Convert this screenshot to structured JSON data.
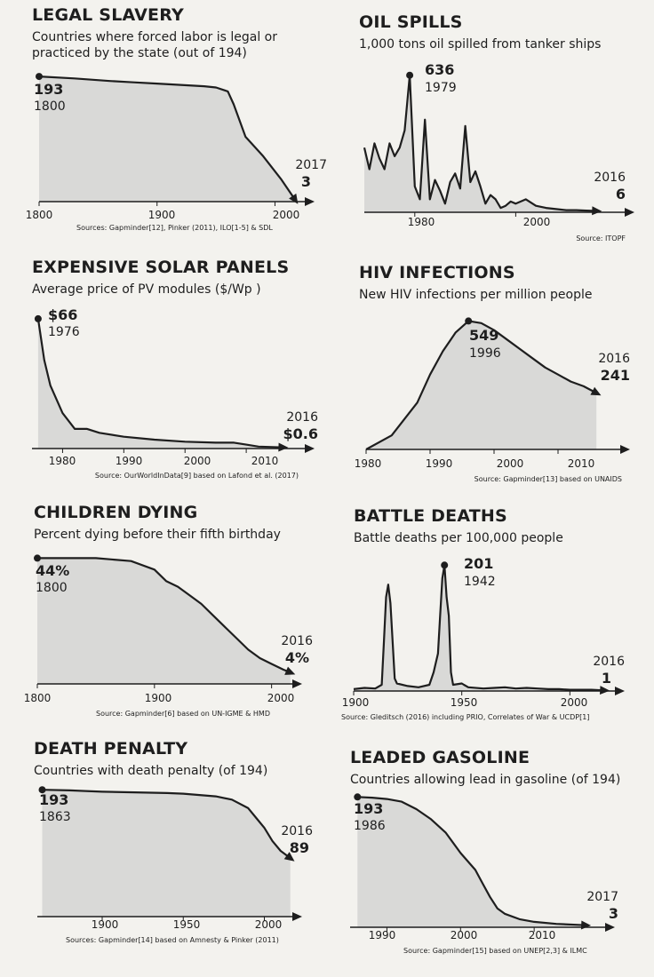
{
  "chart_data": [
    {
      "id": "legal-slavery",
      "type": "area",
      "title": "LEGAL SLAVERY",
      "subtitle": [
        "Countries where forced labor is legal or",
        "practiced by the state (out of 194)"
      ],
      "x": [
        1800,
        1830,
        1860,
        1880,
        1900,
        1920,
        1940,
        1950,
        1960,
        1965,
        1975,
        1990,
        2005,
        2017
      ],
      "y": [
        193,
        190,
        186,
        184,
        182,
        180,
        178,
        176,
        170,
        150,
        100,
        70,
        35,
        3
      ],
      "xlim": [
        1800,
        2020
      ],
      "ylim": [
        0,
        200
      ],
      "xticks": [
        "1800",
        "1900",
        "2000"
      ],
      "start_label": {
        "value": "193",
        "year": "1800"
      },
      "end_label": {
        "value": "3",
        "year": "2017"
      },
      "source": "Sources: Gapminder[12], Pinker (2011), ILO[1-5] & SDL"
    },
    {
      "id": "oil-spills",
      "type": "area",
      "title": "OIL SPILLS",
      "subtitle": [
        "1,000 tons oil spilled from tanker ships"
      ],
      "x": [
        1970,
        1971,
        1972,
        1973,
        1974,
        1975,
        1976,
        1977,
        1978,
        1979,
        1980,
        1981,
        1982,
        1983,
        1984,
        1985,
        1986,
        1987,
        1988,
        1989,
        1990,
        1991,
        1992,
        1993,
        1994,
        1995,
        1996,
        1997,
        1998,
        1999,
        2000,
        2002,
        2004,
        2006,
        2008,
        2010,
        2012,
        2014,
        2016
      ],
      "y": [
        300,
        200,
        320,
        250,
        200,
        320,
        260,
        300,
        380,
        636,
        120,
        60,
        430,
        60,
        150,
        100,
        40,
        140,
        180,
        110,
        400,
        140,
        190,
        120,
        40,
        80,
        60,
        20,
        30,
        50,
        40,
        60,
        30,
        20,
        15,
        10,
        10,
        8,
        6
      ],
      "xlim": [
        1970,
        2020
      ],
      "ylim": [
        0,
        680
      ],
      "xticks": [
        "1980",
        "2000"
      ],
      "peak_label": {
        "value": "636",
        "year": "1979"
      },
      "end_label": {
        "value": "6",
        "year": "2016"
      },
      "source": "Source: ITOPF"
    },
    {
      "id": "solar-panels",
      "type": "area",
      "title": "EXPENSIVE SOLAR PANELS",
      "subtitle": [
        "Average price of PV modules ($/Wp )"
      ],
      "x": [
        1976,
        1977,
        1978,
        1980,
        1982,
        1984,
        1986,
        1990,
        1995,
        2000,
        2005,
        2008,
        2010,
        2012,
        2016
      ],
      "y": [
        66,
        45,
        32,
        18,
        10,
        10,
        8,
        6,
        4.5,
        3.5,
        3,
        3,
        2,
        1,
        0.6
      ],
      "xlim": [
        1975,
        2020
      ],
      "ylim": [
        0,
        70
      ],
      "xticks": [
        "1980",
        "1990",
        "2000",
        "2010"
      ],
      "start_label": {
        "value": "$66",
        "year": "1976"
      },
      "end_label": {
        "value": "$0.6",
        "year": "2016"
      },
      "source": "Source: OurWorldInData[9] based on Lafond et al. (2017)"
    },
    {
      "id": "hiv-infections",
      "type": "area",
      "title": "HIV INFECTIONS",
      "subtitle": [
        "New HIV infections per million people"
      ],
      "x": [
        1980,
        1984,
        1988,
        1990,
        1992,
        1994,
        1996,
        1998,
        2000,
        2002,
        2004,
        2006,
        2008,
        2010,
        2012,
        2014,
        2016
      ],
      "y": [
        0,
        60,
        200,
        320,
        420,
        500,
        549,
        540,
        510,
        470,
        430,
        390,
        350,
        320,
        290,
        270,
        241
      ],
      "xlim": [
        1980,
        2020
      ],
      "ylim": [
        0,
        600
      ],
      "xticks": [
        "1980",
        "1990",
        "2000",
        "2010"
      ],
      "peak_label": {
        "value": "549",
        "year": "1996"
      },
      "end_label": {
        "value": "241",
        "year": "2016"
      },
      "source": "Source: Gapminder[13] based on UNAIDS"
    },
    {
      "id": "children-dying",
      "type": "area",
      "title": "CHILDREN DYING",
      "subtitle": [
        "Percent dying before their fifth birthday"
      ],
      "x": [
        1800,
        1850,
        1880,
        1900,
        1910,
        1920,
        1930,
        1940,
        1950,
        1960,
        1970,
        1980,
        1990,
        2000,
        2010,
        2016
      ],
      "y": [
        44,
        44,
        43,
        40,
        36,
        34,
        31,
        28,
        24,
        20,
        16,
        12,
        9,
        7,
        5,
        4
      ],
      "xlim": [
        1800,
        2020
      ],
      "ylim": [
        0,
        46
      ],
      "xticks": [
        "1800",
        "1900",
        "2000"
      ],
      "start_label": {
        "value": "44%",
        "year": "1800"
      },
      "end_label": {
        "value": "4%",
        "year": "2016"
      },
      "source": "Source: Gapminder[6] based on UN-IGME & HMD"
    },
    {
      "id": "battle-deaths",
      "type": "area",
      "title": "BATTLE DEATHS",
      "subtitle": [
        "Battle deaths per 100,000 people"
      ],
      "x": [
        1900,
        1905,
        1910,
        1913,
        1914,
        1915,
        1916,
        1917,
        1918,
        1919,
        1920,
        1925,
        1930,
        1935,
        1937,
        1939,
        1940,
        1941,
        1942,
        1943,
        1944,
        1945,
        1946,
        1950,
        1951,
        1953,
        1960,
        1965,
        1970,
        1975,
        1980,
        1985,
        1990,
        1995,
        2000,
        2005,
        2010,
        2016
      ],
      "y": [
        3,
        5,
        4,
        10,
        80,
        150,
        170,
        140,
        80,
        20,
        12,
        8,
        6,
        10,
        30,
        60,
        120,
        180,
        201,
        150,
        120,
        30,
        10,
        12,
        10,
        6,
        4,
        5,
        6,
        4,
        5,
        4,
        3,
        3,
        2,
        2,
        2,
        1
      ],
      "xlim": [
        1900,
        2020
      ],
      "ylim": [
        0,
        210
      ],
      "xticks": [
        "1900",
        "1950",
        "2000"
      ],
      "peak_label": {
        "value": "201",
        "year": "1942"
      },
      "end_label": {
        "value": "1",
        "year": "2016"
      },
      "source": "Source: Gleditsch (2016) including PRIO, Correlates of War & UCDP[1]"
    },
    {
      "id": "death-penalty",
      "type": "area",
      "title": "DEATH PENALTY",
      "subtitle": [
        "Countries with death penalty (of 194)"
      ],
      "x": [
        1863,
        1880,
        1900,
        1920,
        1940,
        1950,
        1960,
        1970,
        1980,
        1990,
        1995,
        2000,
        2005,
        2010,
        2016
      ],
      "y": [
        193,
        192,
        190,
        189,
        188,
        187,
        185,
        183,
        178,
        165,
        150,
        135,
        115,
        100,
        89
      ],
      "xlim": [
        1860,
        2020
      ],
      "ylim": [
        0,
        200
      ],
      "xticks": [
        "1900",
        "1950",
        "2000"
      ],
      "start_label": {
        "value": "193",
        "year": "1863"
      },
      "end_label": {
        "value": "89",
        "year": "2016"
      },
      "source": "Sources: Gapminder[14] based on Amnesty & Pinker (2011)"
    },
    {
      "id": "leaded-gasoline",
      "type": "area",
      "title": "LEADED GASOLINE",
      "subtitle": [
        "Countries allowing lead in gasoline (of 194)"
      ],
      "x": [
        1986,
        1988,
        1990,
        1992,
        1994,
        1996,
        1998,
        2000,
        2002,
        2003,
        2004,
        2005,
        2006,
        2008,
        2010,
        2013,
        2017
      ],
      "y": [
        193,
        192,
        190,
        186,
        175,
        160,
        140,
        110,
        85,
        65,
        45,
        28,
        20,
        12,
        8,
        5,
        3
      ],
      "xlim": [
        1985,
        2020
      ],
      "ylim": [
        0,
        200
      ],
      "xticks": [
        "1990",
        "2000",
        "2010"
      ],
      "start_label": {
        "value": "193",
        "year": "1986"
      },
      "end_label": {
        "value": "3",
        "year": "2017"
      },
      "source": "Source: Gapminder[15] based on UNEP[2,3] & ILMC"
    }
  ],
  "colors": {
    "background": "#f3f2ee",
    "fill": "#d9d9d7",
    "line": "#1e1e1e",
    "axis": "#1e1e1e"
  }
}
